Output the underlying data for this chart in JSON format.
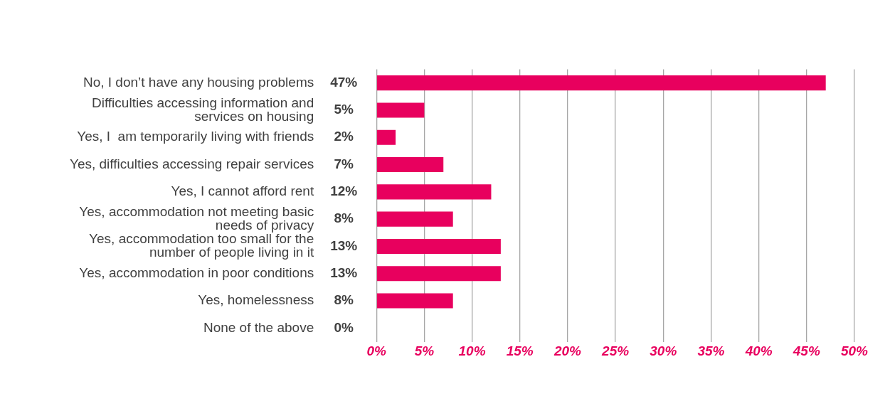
{
  "chart_data": {
    "type": "bar",
    "orientation": "horizontal",
    "categories": [
      "No, I don’t have any housing problems",
      "Difficulties accessing information and services on housing",
      "Yes, I  am temporarily living with friends",
      "Yes, difficulties accessing repair services",
      "Yes, I cannot afford rent",
      "Yes, accommodation not meeting basic needs of privacy",
      "Yes, accommodation too small for the number of people living in it",
      "Yes, accommodation in poor conditions",
      "Yes, homelessness",
      "None of the above"
    ],
    "values": [
      47,
      5,
      2,
      7,
      12,
      8,
      13,
      13,
      8,
      0
    ],
    "value_labels": [
      "47%",
      "5%",
      "2%",
      "7%",
      "12%",
      "8%",
      "13%",
      "13%",
      "8%",
      "0%"
    ],
    "color": "#e8005e",
    "xlim": [
      0,
      50
    ],
    "xticks": [
      {
        "value": 0,
        "label": "0%"
      },
      {
        "value": 5,
        "label": "5%"
      },
      {
        "value": 10,
        "label": "10%"
      },
      {
        "value": 15,
        "label": "15%"
      },
      {
        "value": 20,
        "label": "20%"
      },
      {
        "value": 25,
        "label": "25%"
      },
      {
        "value": 30,
        "label": "30%"
      },
      {
        "value": 35,
        "label": "35%"
      },
      {
        "value": 40,
        "label": "40%"
      },
      {
        "value": 45,
        "label": "45%"
      },
      {
        "value": 50,
        "label": "50%"
      }
    ],
    "grid": "x",
    "legend": false
  }
}
